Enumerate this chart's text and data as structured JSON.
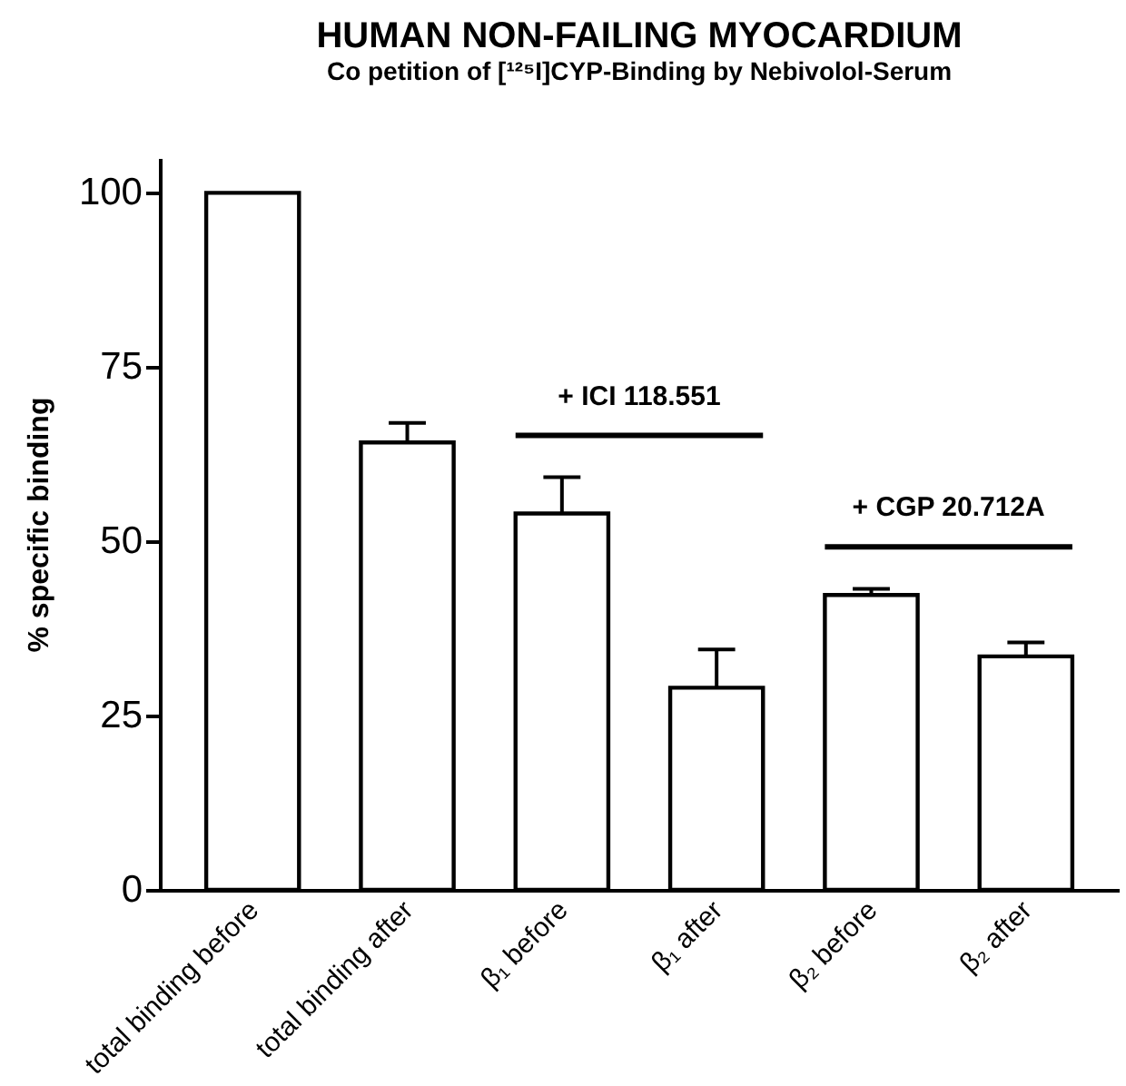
{
  "chart_data": {
    "type": "bar",
    "title": "HUMAN NON-FAILING MYOCARDIUM",
    "subtitle": "Co   petition of [¹²⁵I]CYP-Binding by Nebivolol-Serum",
    "ylabel": "% specific binding",
    "categories": [
      "total binding before",
      "total binding after",
      "β₁ before",
      "β₁ after",
      "β₂ before",
      "β₂ after"
    ],
    "values": [
      100,
      64.2,
      54,
      29,
      42.3,
      33.5
    ],
    "errors": [
      null,
      [
        64.2,
        67
      ],
      [
        54,
        59.2
      ],
      [
        29,
        34.5
      ],
      [
        42.3,
        43.2
      ],
      [
        33.5,
        35.5
      ]
    ],
    "colors": [
      "#ffffff",
      "#ffffff",
      "#ffffff",
      "#ffffff",
      "#ffffff",
      "#ffffff"
    ],
    "ylim": [
      0,
      105
    ],
    "yticks": [
      0,
      25,
      50,
      75,
      100
    ],
    "annotations": [
      "+ ICI 118.551",
      "+ CGP 20.712A"
    ]
  }
}
